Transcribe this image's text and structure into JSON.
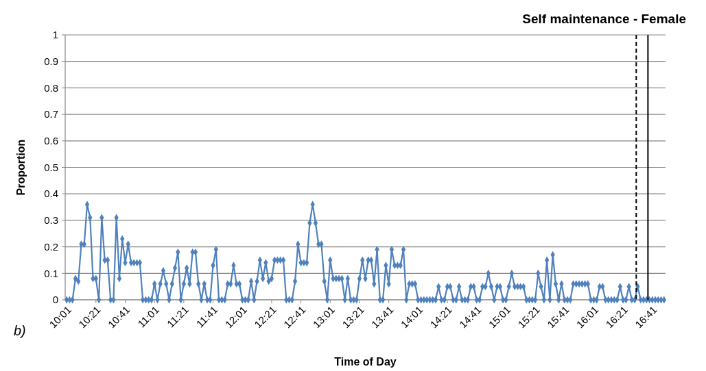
{
  "chart_data": {
    "type": "line",
    "title": "Self maintenance - Female",
    "xlabel": "Time of Day",
    "ylabel": "Proportion",
    "annotations": [
      "b)"
    ],
    "x": [
      10.0167,
      10.05,
      10.0833,
      10.1167,
      10.15,
      10.1833,
      10.2167,
      10.25,
      10.2833,
      10.3167,
      10.35,
      10.3833,
      10.4167,
      10.45,
      10.4833,
      10.5167,
      10.55,
      10.5833,
      10.6167,
      10.65,
      10.6833,
      10.7167,
      10.75,
      10.7833,
      10.8167,
      10.85,
      10.8833,
      10.9167,
      10.95,
      10.9833,
      11.0167,
      11.05,
      11.0833,
      11.1167,
      11.15,
      11.1833,
      11.2167,
      11.25,
      11.2833,
      11.3167,
      11.35,
      11.3833,
      11.4167,
      11.45,
      11.4833,
      11.5167,
      11.55,
      11.5833,
      11.6167,
      11.65,
      11.6833,
      11.7167,
      11.75,
      11.7833,
      11.8167,
      11.85,
      11.8833,
      11.9167,
      11.95,
      11.9833,
      12.0167,
      12.05,
      12.0833,
      12.1167,
      12.15,
      12.1833,
      12.2167,
      12.25,
      12.2833,
      12.3167,
      12.35,
      12.3833,
      12.4167,
      12.45,
      12.4833,
      12.5167,
      12.55,
      12.5833,
      12.6167,
      12.65,
      12.6833,
      12.7167,
      12.75,
      12.7833,
      12.8167,
      12.85,
      12.8833,
      12.9167,
      12.95,
      12.9833,
      13.0167,
      13.05,
      13.0833,
      13.1167,
      13.15,
      13.1833,
      13.2167,
      13.25,
      13.2833,
      13.3167,
      13.35,
      13.3833,
      13.4167,
      13.45,
      13.4833,
      13.5167,
      13.55,
      13.5833,
      13.6167,
      13.65,
      13.6833,
      13.7167,
      13.75,
      13.7833,
      13.8167,
      13.85,
      13.8833,
      13.9167,
      13.95,
      13.9833,
      14.0167,
      14.05,
      14.0833,
      14.1167,
      14.15,
      14.1833,
      14.2167,
      14.25,
      14.2833,
      14.3167,
      14.35,
      14.3833,
      14.4167,
      14.45,
      14.4833,
      14.5167,
      14.55,
      14.5833,
      14.6167,
      14.65,
      14.6833,
      14.7167,
      14.75,
      14.7833,
      14.8167,
      14.85,
      14.8833,
      14.9167,
      14.95,
      14.9833,
      15.0167,
      15.05,
      15.0833,
      15.1167,
      15.15,
      15.1833,
      15.2167,
      15.25,
      15.2833,
      15.3167,
      15.35,
      15.3833,
      15.4167,
      15.45,
      15.4833,
      15.5167,
      15.55,
      15.5833,
      15.6167,
      15.65,
      15.6833,
      15.7167,
      15.75,
      15.7833,
      15.8167,
      15.85,
      15.8833,
      15.9167,
      15.95,
      15.9833,
      16.0167,
      16.05,
      16.0833,
      16.1167,
      16.15,
      16.1833,
      16.2167,
      16.25,
      16.2833,
      16.3167,
      16.35,
      16.3833,
      16.4167,
      16.45,
      16.4833,
      16.5167,
      16.55,
      16.5833,
      16.6167,
      16.65,
      16.6833,
      16.7167,
      16.75,
      16.7833,
      16.8167
    ],
    "series": [
      {
        "color": "#4f81bd",
        "values": [
          0,
          0,
          0,
          0.08,
          0.07,
          0.21,
          0.21,
          0.36,
          0.31,
          0.08,
          0.08,
          0,
          0.31,
          0.15,
          0.15,
          0,
          0,
          0.31,
          0.08,
          0.23,
          0.14,
          0.21,
          0.14,
          0.14,
          0.14,
          0.14,
          0,
          0,
          0,
          0,
          0.06,
          0,
          0.06,
          0.11,
          0.06,
          0,
          0.06,
          0.12,
          0.18,
          0,
          0.06,
          0.12,
          0.06,
          0.18,
          0.18,
          0.06,
          0,
          0.06,
          0,
          0,
          0.13,
          0.19,
          0,
          0,
          0,
          0.06,
          0.06,
          0.13,
          0.06,
          0.06,
          0,
          0,
          0,
          0.07,
          0,
          0.07,
          0.15,
          0.08,
          0.14,
          0.07,
          0.08,
          0.15,
          0.15,
          0.15,
          0.15,
          0,
          0,
          0,
          0.07,
          0.21,
          0.14,
          0.14,
          0.14,
          0.29,
          0.36,
          0.29,
          0.21,
          0.21,
          0.07,
          0,
          0.15,
          0.08,
          0.08,
          0.08,
          0.08,
          0,
          0.08,
          0,
          0,
          0,
          0.08,
          0.15,
          0.08,
          0.15,
          0.15,
          0.06,
          0.19,
          0,
          0,
          0.13,
          0.06,
          0.19,
          0.13,
          0.13,
          0.13,
          0.19,
          0,
          0.06,
          0.06,
          0.06,
          0,
          0,
          0,
          0,
          0,
          0,
          0,
          0.05,
          0,
          0,
          0.05,
          0.05,
          0,
          0,
          0.05,
          0,
          0,
          0,
          0.05,
          0.05,
          0,
          0,
          0.05,
          0.05,
          0.1,
          0.05,
          0,
          0.05,
          0.05,
          0,
          0,
          0.05,
          0.1,
          0.05,
          0.05,
          0.05,
          0.05,
          0,
          0,
          0,
          0,
          0.1,
          0.05,
          0,
          0.15,
          0,
          0.17,
          0.06,
          0,
          0.06,
          0,
          0,
          0,
          0.06,
          0.06,
          0.06,
          0.06,
          0.06,
          0.06,
          0,
          0,
          0,
          0.05,
          0.05,
          0,
          0,
          0,
          0,
          0,
          0.05,
          0,
          0,
          0.05,
          0,
          0,
          0.05,
          0,
          0,
          0,
          0,
          0,
          0,
          0,
          0,
          0
        ]
      }
    ],
    "xlim": [
      10,
      16.8333
    ],
    "xticks": [
      {
        "value": 10.0167,
        "label": "10:01"
      },
      {
        "value": 10.35,
        "label": "10:21"
      },
      {
        "value": 10.6833,
        "label": "10:41"
      },
      {
        "value": 11.0167,
        "label": "11:01"
      },
      {
        "value": 11.35,
        "label": "11:21"
      },
      {
        "value": 11.6833,
        "label": "11:41"
      },
      {
        "value": 12.0167,
        "label": "12:01"
      },
      {
        "value": 12.35,
        "label": "12:21"
      },
      {
        "value": 12.6833,
        "label": "12:41"
      },
      {
        "value": 13.0167,
        "label": "13:01"
      },
      {
        "value": 13.35,
        "label": "13:21"
      },
      {
        "value": 13.6833,
        "label": "13:41"
      },
      {
        "value": 14.0167,
        "label": "14:01"
      },
      {
        "value": 14.35,
        "label": "14:21"
      },
      {
        "value": 14.6833,
        "label": "14:41"
      },
      {
        "value": 15.0167,
        "label": "15:01"
      },
      {
        "value": 15.35,
        "label": "15:21"
      },
      {
        "value": 15.6833,
        "label": "15:41"
      },
      {
        "value": 16.0167,
        "label": "16:01"
      },
      {
        "value": 16.35,
        "label": "16:21"
      },
      {
        "value": 16.6833,
        "label": "16:41"
      }
    ],
    "ylim": [
      0,
      1
    ],
    "yticks": [
      0,
      0.1,
      0.2,
      0.3,
      0.4,
      0.5,
      0.6,
      0.7,
      0.8,
      0.9,
      1
    ],
    "grid": "y",
    "marker": "diamond",
    "line_style": "solid",
    "ref_lines": [
      {
        "axis": "x",
        "value": 16.5,
        "color": "#000000",
        "line_style": "dashed"
      },
      {
        "axis": "x",
        "value": 16.6333,
        "color": "#000000",
        "line_style": "solid"
      }
    ]
  }
}
